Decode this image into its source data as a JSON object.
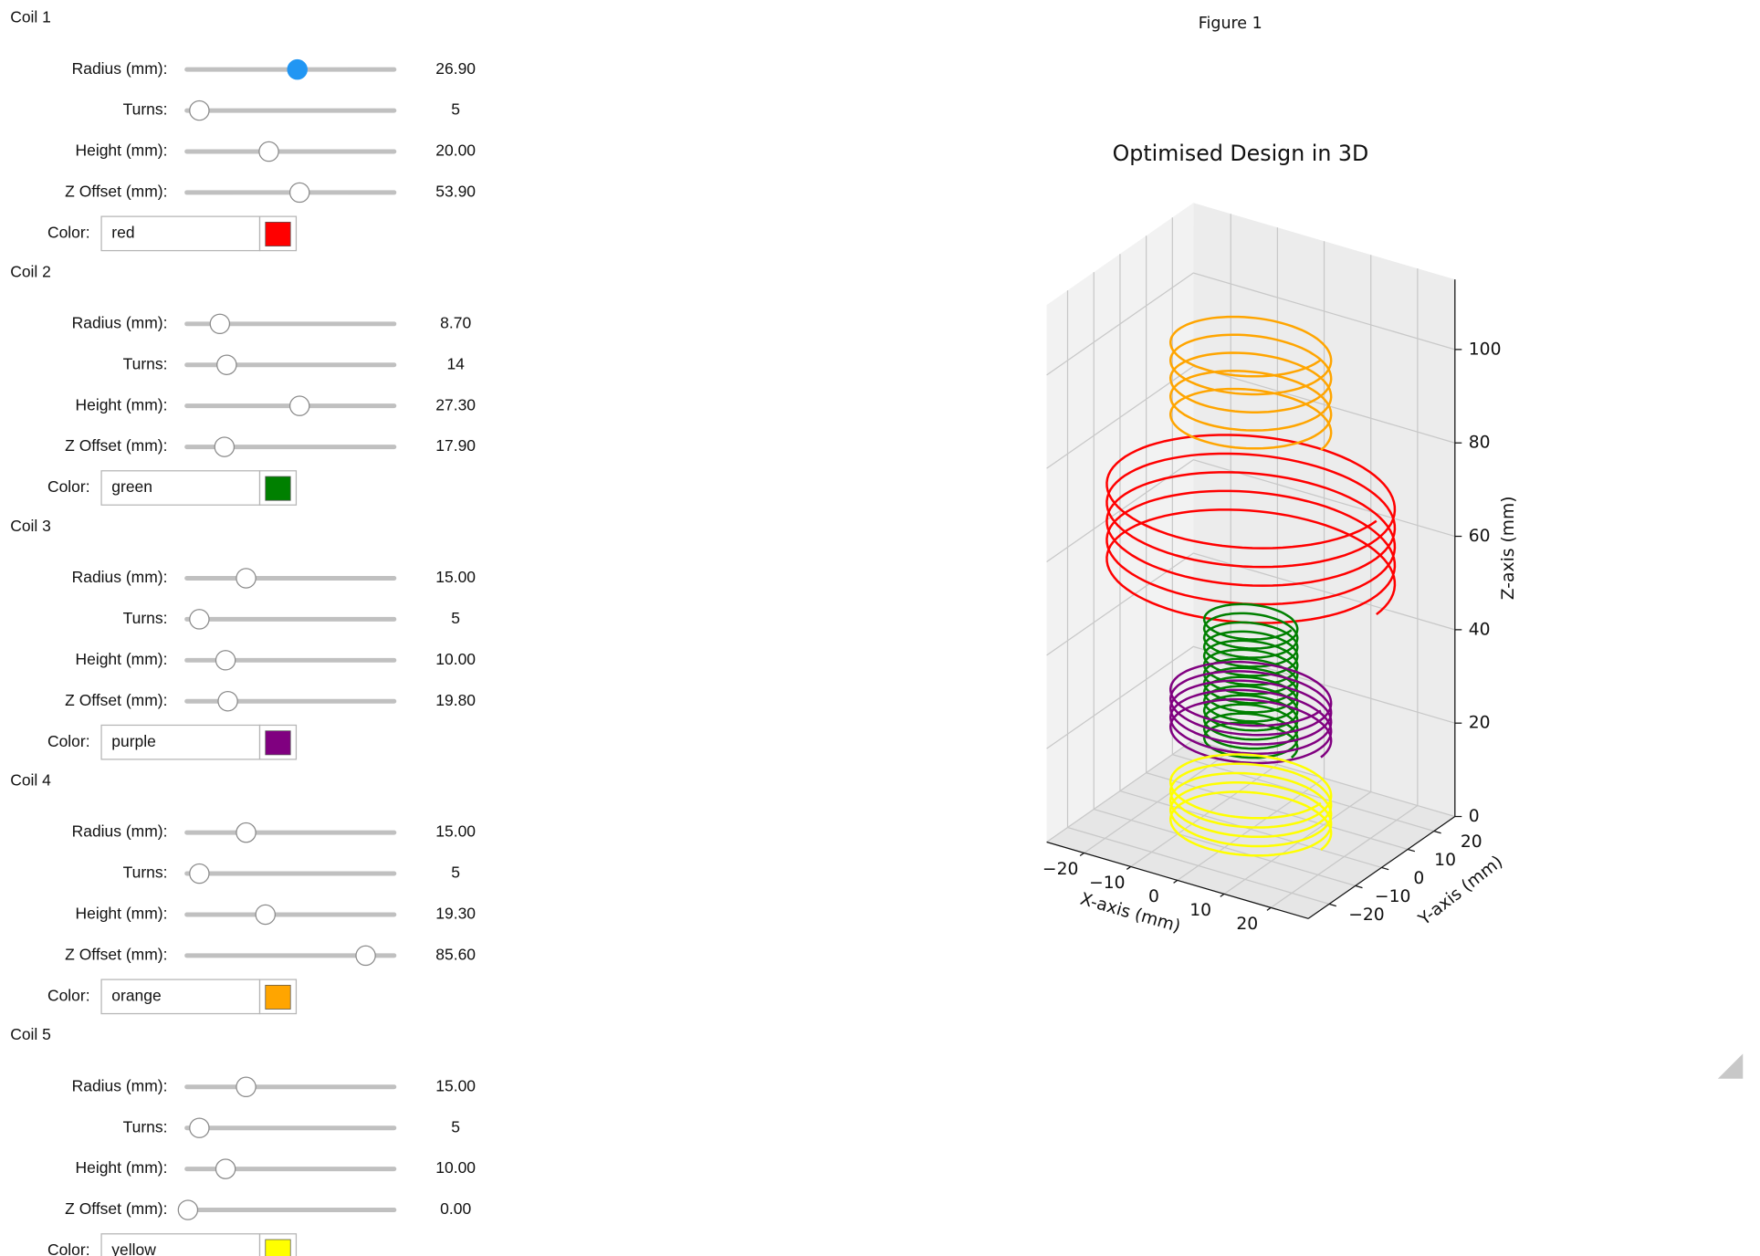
{
  "figure": {
    "window_title": "Figure 1",
    "title": "Optimised Design in 3D",
    "xlabel": "X-axis (mm)",
    "ylabel": "Y-axis (mm)",
    "zlabel": "Z-axis (mm)",
    "xlim": [
      -28,
      28
    ],
    "ylim": [
      -28,
      28
    ],
    "zlim": [
      0,
      115
    ],
    "xticks": [
      {
        "value": -20,
        "label": "−20"
      },
      {
        "value": -10,
        "label": "−10"
      },
      0,
      10,
      20
    ],
    "yticks": [
      {
        "value": -20,
        "label": "−20"
      },
      {
        "value": -10,
        "label": "−10"
      },
      0,
      10,
      20
    ],
    "zticks": [
      0,
      20,
      40,
      60,
      80,
      100
    ]
  },
  "coils": [
    {
      "title": "Coil 1",
      "fields": [
        {
          "label": "Radius (mm):",
          "value": 26.9,
          "value_label": "26.90"
        },
        {
          "label": "Turns:",
          "value": 5,
          "value_label": "5"
        },
        {
          "label": "Height (mm):",
          "value": 20,
          "value_label": "20.00"
        },
        {
          "label": "Z Offset (mm):",
          "value": 53.9,
          "value_label": "53.90"
        }
      ],
      "color_label": "Color:",
      "color": "red"
    },
    {
      "title": "Coil 2",
      "fields": [
        {
          "label": "Radius (mm):",
          "value": 8.7,
          "value_label": "8.70"
        },
        {
          "label": "Turns:",
          "value": 14,
          "value_label": "14"
        },
        {
          "label": "Height (mm):",
          "value": 27.3,
          "value_label": "27.30"
        },
        {
          "label": "Z Offset (mm):",
          "value": 17.9,
          "value_label": "17.90"
        }
      ],
      "color_label": "Color:",
      "color": "green"
    },
    {
      "title": "Coil 3",
      "fields": [
        {
          "label": "Radius (mm):",
          "value": 15,
          "value_label": "15.00"
        },
        {
          "label": "Turns:",
          "value": 5,
          "value_label": "5"
        },
        {
          "label": "Height (mm):",
          "value": 10,
          "value_label": "10.00"
        },
        {
          "label": "Z Offset (mm):",
          "value": 19.8,
          "value_label": "19.80"
        }
      ],
      "color_label": "Color:",
      "color": "purple"
    },
    {
      "title": "Coil 4",
      "fields": [
        {
          "label": "Radius (mm):",
          "value": 15,
          "value_label": "15.00"
        },
        {
          "label": "Turns:",
          "value": 5,
          "value_label": "5"
        },
        {
          "label": "Height (mm):",
          "value": 19.3,
          "value_label": "19.30"
        },
        {
          "label": "Z Offset (mm):",
          "value": 85.6,
          "value_label": "85.60"
        }
      ],
      "color_label": "Color:",
      "color": "orange"
    },
    {
      "title": "Coil 5",
      "fields": [
        {
          "label": "Radius (mm):",
          "value": 15,
          "value_label": "15.00"
        },
        {
          "label": "Turns:",
          "value": 5,
          "value_label": "5"
        },
        {
          "label": "Height (mm):",
          "value": 10,
          "value_label": "10.00"
        },
        {
          "label": "Z Offset (mm):",
          "value": 0,
          "value_label": "0.00"
        }
      ],
      "color_label": "Color:",
      "color": "yellow"
    }
  ]
}
